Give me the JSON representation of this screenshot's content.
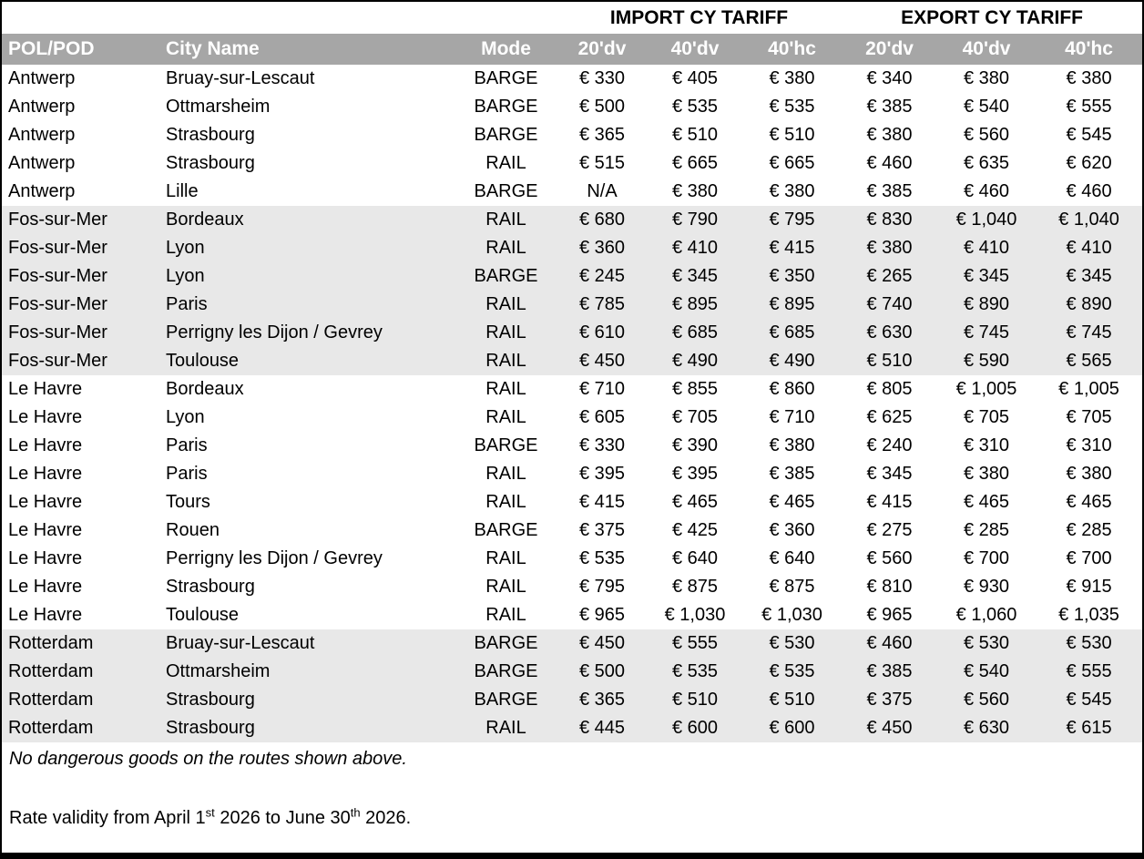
{
  "table": {
    "section_headers": {
      "import": "IMPORT CY TARIFF",
      "export": "EXPORT CY TARIFF"
    },
    "columns": [
      "POL/POD",
      "City Name",
      "Mode",
      "20'dv",
      "40'dv",
      "40'hc",
      "20'dv",
      "40'dv",
      "40'hc"
    ],
    "groups": [
      {
        "pol": "Antwerp",
        "shaded": false,
        "rows": [
          {
            "city": "Bruay-sur-Lescaut",
            "mode": "BARGE",
            "import": [
              "€ 330",
              "€ 405",
              "€ 380"
            ],
            "export": [
              "€ 340",
              "€ 380",
              "€ 380"
            ]
          },
          {
            "city": "Ottmarsheim",
            "mode": "BARGE",
            "import": [
              "€ 500",
              "€ 535",
              "€ 535"
            ],
            "export": [
              "€ 385",
              "€ 540",
              "€ 555"
            ]
          },
          {
            "city": "Strasbourg",
            "mode": "BARGE",
            "import": [
              "€ 365",
              "€ 510",
              "€ 510"
            ],
            "export": [
              "€ 380",
              "€ 560",
              "€ 545"
            ]
          },
          {
            "city": "Strasbourg",
            "mode": "RAIL",
            "import": [
              "€ 515",
              "€ 665",
              "€ 665"
            ],
            "export": [
              "€ 460",
              "€ 635",
              "€ 620"
            ]
          },
          {
            "city": "Lille",
            "mode": "BARGE",
            "import": [
              "N/A",
              "€ 380",
              "€ 380"
            ],
            "export": [
              "€ 385",
              "€ 460",
              "€ 460"
            ]
          }
        ]
      },
      {
        "pol": "Fos-sur-Mer",
        "shaded": true,
        "rows": [
          {
            "city": "Bordeaux",
            "mode": "RAIL",
            "import": [
              "€ 680",
              "€ 790",
              "€ 795"
            ],
            "export": [
              "€ 830",
              "€ 1,040",
              "€ 1,040"
            ]
          },
          {
            "city": "Lyon",
            "mode": "RAIL",
            "import": [
              "€ 360",
              "€ 410",
              "€ 415"
            ],
            "export": [
              "€ 380",
              "€ 410",
              "€ 410"
            ]
          },
          {
            "city": "Lyon",
            "mode": "BARGE",
            "import": [
              "€ 245",
              "€ 345",
              "€ 350"
            ],
            "export": [
              "€ 265",
              "€ 345",
              "€ 345"
            ]
          },
          {
            "city": "Paris",
            "mode": "RAIL",
            "import": [
              "€ 785",
              "€ 895",
              "€ 895"
            ],
            "export": [
              "€ 740",
              "€ 890",
              "€ 890"
            ]
          },
          {
            "city": "Perrigny les Dijon / Gevrey",
            "mode": "RAIL",
            "import": [
              "€ 610",
              "€ 685",
              "€ 685"
            ],
            "export": [
              "€ 630",
              "€ 745",
              "€ 745"
            ]
          },
          {
            "city": "Toulouse",
            "mode": "RAIL",
            "import": [
              "€ 450",
              "€ 490",
              "€ 490"
            ],
            "export": [
              "€ 510",
              "€ 590",
              "€ 565"
            ]
          }
        ]
      },
      {
        "pol": "Le Havre",
        "shaded": false,
        "rows": [
          {
            "city": "Bordeaux",
            "mode": "RAIL",
            "import": [
              "€ 710",
              "€ 855",
              "€ 860"
            ],
            "export": [
              "€ 805",
              "€ 1,005",
              "€ 1,005"
            ]
          },
          {
            "city": "Lyon",
            "mode": "RAIL",
            "import": [
              "€ 605",
              "€ 705",
              "€ 710"
            ],
            "export": [
              "€ 625",
              "€ 705",
              "€ 705"
            ]
          },
          {
            "city": "Paris",
            "mode": "BARGE",
            "import": [
              "€ 330",
              "€ 390",
              "€ 380"
            ],
            "export": [
              "€ 240",
              "€ 310",
              "€ 310"
            ]
          },
          {
            "city": "Paris",
            "mode": "RAIL",
            "import": [
              "€ 395",
              "€ 395",
              "€ 385"
            ],
            "export": [
              "€ 345",
              "€ 380",
              "€ 380"
            ]
          },
          {
            "city": "Tours",
            "mode": "RAIL",
            "import": [
              "€ 415",
              "€ 465",
              "€ 465"
            ],
            "export": [
              "€ 415",
              "€ 465",
              "€ 465"
            ]
          },
          {
            "city": "Rouen",
            "mode": "BARGE",
            "import": [
              "€ 375",
              "€ 425",
              "€ 360"
            ],
            "export": [
              "€ 275",
              "€ 285",
              "€ 285"
            ]
          },
          {
            "city": "Perrigny les Dijon / Gevrey",
            "mode": "RAIL",
            "import": [
              "€ 535",
              "€ 640",
              "€ 640"
            ],
            "export": [
              "€ 560",
              "€ 700",
              "€ 700"
            ]
          },
          {
            "city": "Strasbourg",
            "mode": "RAIL",
            "import": [
              "€ 795",
              "€ 875",
              "€ 875"
            ],
            "export": [
              "€ 810",
              "€ 930",
              "€ 915"
            ]
          },
          {
            "city": "Toulouse",
            "mode": "RAIL",
            "import": [
              "€ 965",
              "€ 1,030",
              "€ 1,030"
            ],
            "export": [
              "€ 965",
              "€ 1,060",
              "€ 1,035"
            ]
          }
        ]
      },
      {
        "pol": "Rotterdam",
        "shaded": true,
        "rows": [
          {
            "city": "Bruay-sur-Lescaut",
            "mode": "BARGE",
            "import": [
              "€ 450",
              "€ 555",
              "€ 530"
            ],
            "export": [
              "€ 460",
              "€ 530",
              "€ 530"
            ]
          },
          {
            "city": "Ottmarsheim",
            "mode": "BARGE",
            "import": [
              "€ 500",
              "€ 535",
              "€ 535"
            ],
            "export": [
              "€ 385",
              "€ 540",
              "€ 555"
            ]
          },
          {
            "city": "Strasbourg",
            "mode": "BARGE",
            "import": [
              "€ 365",
              "€ 510",
              "€ 510"
            ],
            "export": [
              "€ 375",
              "€ 560",
              "€ 545"
            ]
          },
          {
            "city": "Strasbourg",
            "mode": "RAIL",
            "import": [
              "€ 445",
              "€ 600",
              "€ 600"
            ],
            "export": [
              "€ 450",
              "€ 630",
              "€ 615"
            ]
          }
        ]
      }
    ]
  },
  "notes": {
    "dangerous_goods": "No dangerous goods on the routes shown above.",
    "validity": {
      "part1": "Rate validity from April 1",
      "sup1": "st",
      "part2": " 2026 to June 30",
      "sup2": "th",
      "part3": " 2026."
    }
  },
  "colors": {
    "header_band_bg": "#A6A6A6",
    "header_band_text": "#FFFFFF",
    "shaded_group_bg": "#E8E8E8",
    "border": "#000000"
  }
}
